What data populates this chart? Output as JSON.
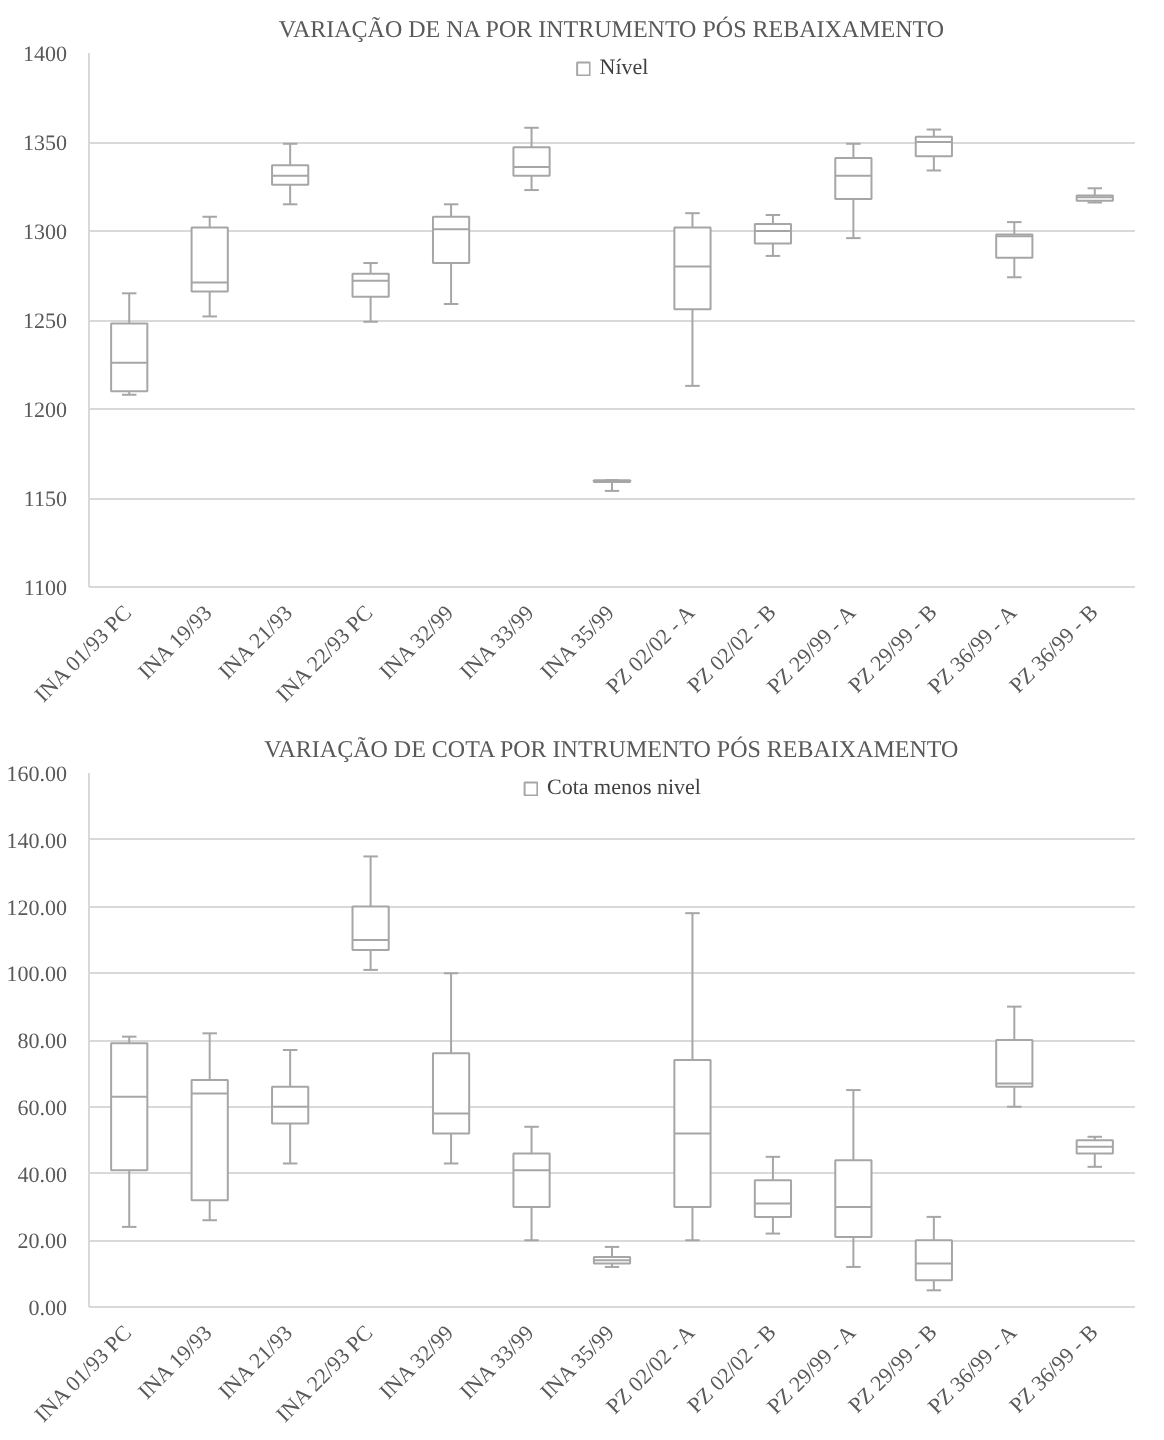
{
  "chart_data": [
    {
      "type": "box",
      "title": "VARIAÇÃO DE NA POR INTRUMENTO PÓS REBAIXAMENTO",
      "categories": [
        "INA 01/93 PC",
        "INA 19/93",
        "INA 21/93",
        "INA 22/93 PC",
        "INA 32/99",
        "INA 33/99",
        "INA 35/99",
        "PZ 02/02 - A",
        "PZ 02/02 - B",
        "PZ 29/99 - A",
        "PZ 29/99 - B",
        "PZ 36/99 - A",
        "PZ 36/99 - B"
      ],
      "series": [
        {
          "name": "Nível",
          "color": "#a6a6a6",
          "boxes": [
            {
              "low": 1208,
              "q1": 1210,
              "median": 1226,
              "q3": 1248,
              "high": 1265
            },
            {
              "low": 1252,
              "q1": 1266,
              "median": 1271,
              "q3": 1302,
              "high": 1308
            },
            {
              "low": 1315,
              "q1": 1326,
              "median": 1331,
              "q3": 1337,
              "high": 1349
            },
            {
              "low": 1249,
              "q1": 1263,
              "median": 1272,
              "q3": 1276,
              "high": 1282
            },
            {
              "low": 1259,
              "q1": 1282,
              "median": 1301,
              "q3": 1308,
              "high": 1315
            },
            {
              "low": 1323,
              "q1": 1331,
              "median": 1336,
              "q3": 1347,
              "high": 1358
            },
            {
              "low": 1154,
              "q1": 1159,
              "median": 1159,
              "q3": 1160,
              "high": 1160
            },
            {
              "low": 1213,
              "q1": 1256,
              "median": 1280,
              "q3": 1302,
              "high": 1310
            },
            {
              "low": 1286,
              "q1": 1293,
              "median": 1300,
              "q3": 1304,
              "high": 1309
            },
            {
              "low": 1296,
              "q1": 1318,
              "median": 1331,
              "q3": 1341,
              "high": 1349
            },
            {
              "low": 1334,
              "q1": 1342,
              "median": 1350,
              "q3": 1353,
              "high": 1357
            },
            {
              "low": 1274,
              "q1": 1285,
              "median": 1297,
              "q3": 1298,
              "high": 1305
            },
            {
              "low": 1316,
              "q1": 1317,
              "median": 1319,
              "q3": 1320,
              "high": 1324
            }
          ]
        }
      ],
      "ylim": [
        1100,
        1400
      ],
      "yticks": [
        1100,
        1150,
        1200,
        1250,
        1300,
        1350,
        1400
      ],
      "grid": "y",
      "legend": "top"
    },
    {
      "type": "box",
      "title": "VARIAÇÃO DE COTA POR INTRUMENTO PÓS REBAIXAMENTO",
      "categories": [
        "INA 01/93 PC",
        "INA 19/93",
        "INA 21/93",
        "INA 22/93 PC",
        "INA 32/99",
        "INA 33/99",
        "INA 35/99",
        "PZ 02/02 - A",
        "PZ 02/02 - B",
        "PZ 29/99 - A",
        "PZ 29/99 - B",
        "PZ 36/99 - A",
        "PZ 36/99 - B"
      ],
      "series": [
        {
          "name": "Cota menos nivel",
          "color": "#a6a6a6",
          "boxes": [
            {
              "low": 24,
              "q1": 41,
              "median": 63,
              "q3": 79,
              "high": 81
            },
            {
              "low": 26,
              "q1": 32,
              "median": 64,
              "q3": 68,
              "high": 82
            },
            {
              "low": 43,
              "q1": 55,
              "median": 60,
              "q3": 66,
              "high": 77
            },
            {
              "low": 101,
              "q1": 107,
              "median": 110,
              "q3": 120,
              "high": 135
            },
            {
              "low": 43,
              "q1": 52,
              "median": 58,
              "q3": 76,
              "high": 100
            },
            {
              "low": 20,
              "q1": 30,
              "median": 41,
              "q3": 46,
              "high": 54
            },
            {
              "low": 12,
              "q1": 13,
              "median": 14,
              "q3": 15,
              "high": 18
            },
            {
              "low": 20,
              "q1": 30,
              "median": 52,
              "q3": 74,
              "high": 118
            },
            {
              "low": 22,
              "q1": 27,
              "median": 31,
              "q3": 38,
              "high": 45
            },
            {
              "low": 12,
              "q1": 21,
              "median": 30,
              "q3": 44,
              "high": 65
            },
            {
              "low": 5,
              "q1": 8,
              "median": 13,
              "q3": 20,
              "high": 27
            },
            {
              "low": 60,
              "q1": 66,
              "median": 67,
              "q3": 80,
              "high": 90
            },
            {
              "low": 42,
              "q1": 46,
              "median": 48,
              "q3": 50,
              "high": 51
            }
          ]
        }
      ],
      "ylim": [
        0,
        160
      ],
      "yticks": [
        {
          "value": 0,
          "label": "0.00"
        },
        {
          "value": 20,
          "label": "20.00"
        },
        {
          "value": 40,
          "label": "40.00"
        },
        {
          "value": 60,
          "label": "60.00"
        },
        {
          "value": 80,
          "label": "80.00"
        },
        {
          "value": 100,
          "label": "100.00"
        },
        {
          "value": 120,
          "label": "120.00"
        },
        {
          "value": 140,
          "label": "140.00"
        },
        {
          "value": 160,
          "label": "160.00"
        }
      ],
      "grid": "y",
      "legend": "top"
    }
  ]
}
